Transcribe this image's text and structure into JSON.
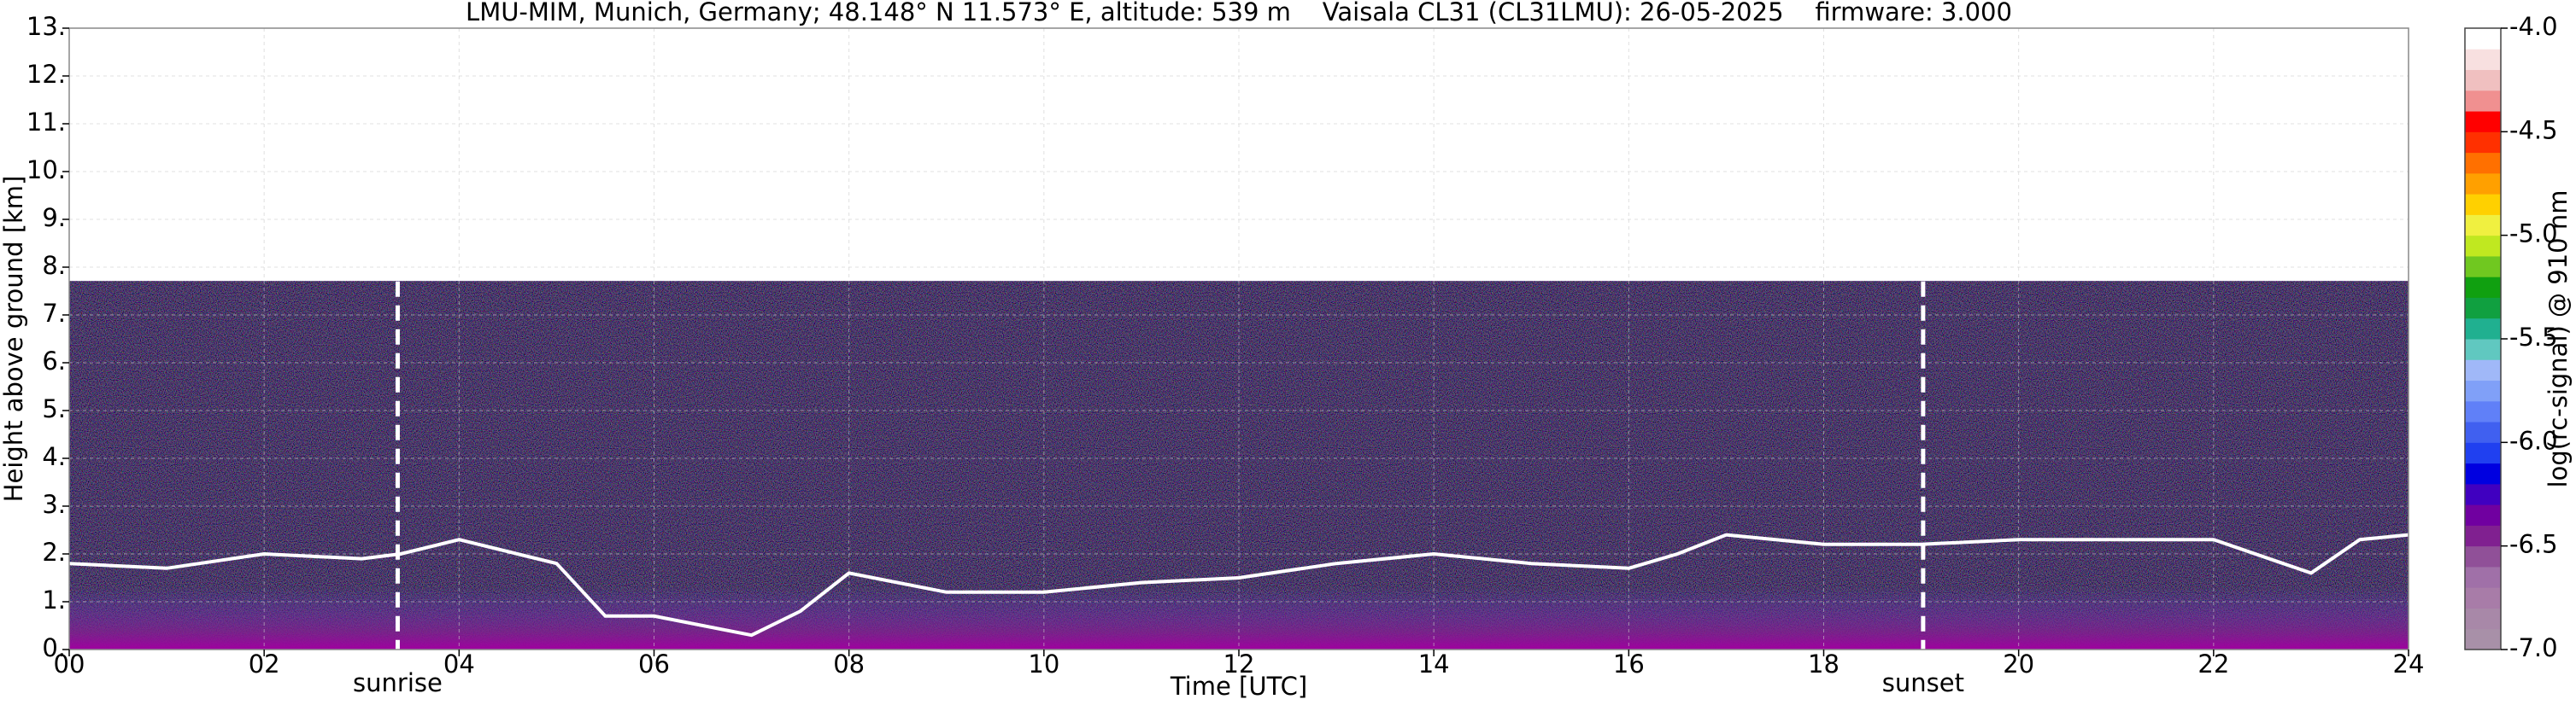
{
  "chart_data": {
    "type": "ceilometer",
    "title": "LMU-MIM, Munich, Germany; 48.148° N 11.573° E, altitude: 539 m    Vaisala CL31 (CL31LMU): 26-05-2025    firmware: 3.000",
    "x_label": "Time [UTC]",
    "y_label": "Height above ground [km]",
    "xlim": [
      0,
      24
    ],
    "xticks": [
      {
        "value": 0,
        "label": "00"
      },
      {
        "value": 2,
        "label": "02"
      },
      {
        "value": 4,
        "label": "04"
      },
      {
        "value": 6,
        "label": "06"
      },
      {
        "value": 8,
        "label": "08"
      },
      10,
      12,
      14,
      16,
      18,
      20,
      22,
      24
    ],
    "ylim": [
      0,
      13
    ],
    "yticks": [
      {
        "value": 0,
        "label": "0."
      },
      {
        "value": 1,
        "label": "1."
      },
      {
        "value": 2,
        "label": "2."
      },
      {
        "value": 3,
        "label": "3."
      },
      {
        "value": 4,
        "label": "4."
      },
      {
        "value": 5,
        "label": "5."
      },
      {
        "value": 6,
        "label": "6."
      },
      {
        "value": 7,
        "label": "7."
      },
      {
        "value": 8,
        "label": "8."
      },
      {
        "value": 9,
        "label": "9."
      },
      {
        "value": 10,
        "label": "10."
      },
      {
        "value": 11,
        "label": "11."
      },
      {
        "value": 12,
        "label": "12."
      },
      {
        "value": 13,
        "label": "13."
      }
    ],
    "grid": true,
    "layers": [
      {
        "color": "#ffffff",
        "x": [
          0,
          1,
          2,
          3,
          3.4,
          4,
          5,
          5.5,
          6,
          7,
          7.5,
          8,
          9,
          10,
          11,
          12,
          13,
          14,
          15,
          16,
          16.5,
          17,
          18,
          19,
          20,
          21,
          22,
          23,
          23.5,
          24
        ],
        "values": [
          1.8,
          1.7,
          2.0,
          1.9,
          2.0,
          2.3,
          1.8,
          0.7,
          0.7,
          0.3,
          0.8,
          1.6,
          1.2,
          1.2,
          1.4,
          1.5,
          1.8,
          2.0,
          1.8,
          1.7,
          2.0,
          2.4,
          2.2,
          2.2,
          2.3,
          2.3,
          2.3,
          1.6,
          2.3,
          2.4
        ]
      }
    ],
    "annotations": [
      {
        "x": 3.37,
        "label": "sunrise"
      },
      {
        "x": 19.02,
        "label": "sunset"
      }
    ],
    "colorbar": {
      "label": "log(rc-signal) @ 910 nm",
      "lim": [
        -7,
        -4
      ],
      "ticks": [
        {
          "value": -7,
          "label": "-7.0"
        },
        -6.5,
        {
          "value": -6,
          "label": "-6.0"
        },
        -5.5,
        {
          "value": -5,
          "label": "-5.0"
        },
        -4.5,
        {
          "value": -4,
          "label": "-4.0"
        }
      ],
      "colors": [
        "#a890a8",
        "#a888a8",
        "#a87ca8",
        "#a070a8",
        "#905098",
        "#802090",
        "#7000a0",
        "#4000c0",
        "#0000e0",
        "#2040f0",
        "#4060f0",
        "#6080f8",
        "#80a0f8",
        "#a0b8f8",
        "#60c8c0",
        "#20b090",
        "#10a040",
        "#10a010",
        "#70c820",
        "#c0e820",
        "#f0f040",
        "#ffd000",
        "#ffa000",
        "#ff7000",
        "#ff3000",
        "#ff0000",
        "#f09090",
        "#f0c0c0",
        "#f8e0e0",
        "#ffffff"
      ]
    }
  }
}
